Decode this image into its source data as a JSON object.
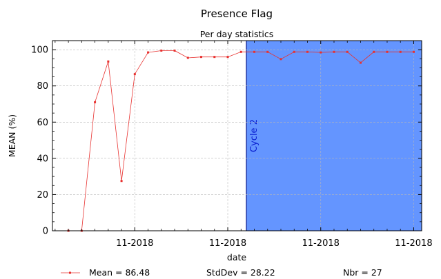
{
  "chart_data": {
    "type": "line",
    "title": "Presence Flag",
    "subtitle": "Per day statistics",
    "xlabel": "date",
    "ylabel": "MEAN (%)",
    "ylim": [
      0,
      105
    ],
    "yticks": [
      0,
      20,
      40,
      60,
      80,
      100
    ],
    "xlim": [
      -1.2,
      26.6
    ],
    "xticks": [
      {
        "x": 5,
        "label": "11-2018"
      },
      {
        "x": 12,
        "label": "11-2018"
      },
      {
        "x": 19,
        "label": "11-2018"
      },
      {
        "x": 26,
        "label": "11-2018"
      }
    ],
    "grid": true,
    "series": [
      {
        "name": "",
        "color": "#e8312f",
        "x": [
          0,
          1,
          2,
          3,
          4,
          5,
          6,
          7,
          8,
          9,
          10,
          11,
          12,
          13,
          14,
          15,
          16,
          17,
          18,
          19,
          20,
          21,
          22,
          23,
          24,
          25,
          26
        ],
        "values": [
          0,
          0,
          71,
          93.5,
          27.5,
          86.5,
          98.5,
          99.5,
          99.5,
          95.5,
          96,
          96,
          96,
          98.8,
          98.8,
          98.8,
          94.8,
          98.8,
          98.8,
          98.5,
          98.8,
          98.8,
          92.8,
          98.8,
          98.8,
          98.8,
          98.8
        ]
      }
    ],
    "shaded_regions": [
      {
        "label": "Cycle 2",
        "x_start": 13.4,
        "x_end": 26.6,
        "fill": "#6495ff",
        "edge": "#0a1a8a"
      }
    ],
    "stats": {
      "mean": "Mean = 86.48",
      "stddev": "StdDev = 28.22",
      "nbr": "Nbr = 27"
    }
  }
}
